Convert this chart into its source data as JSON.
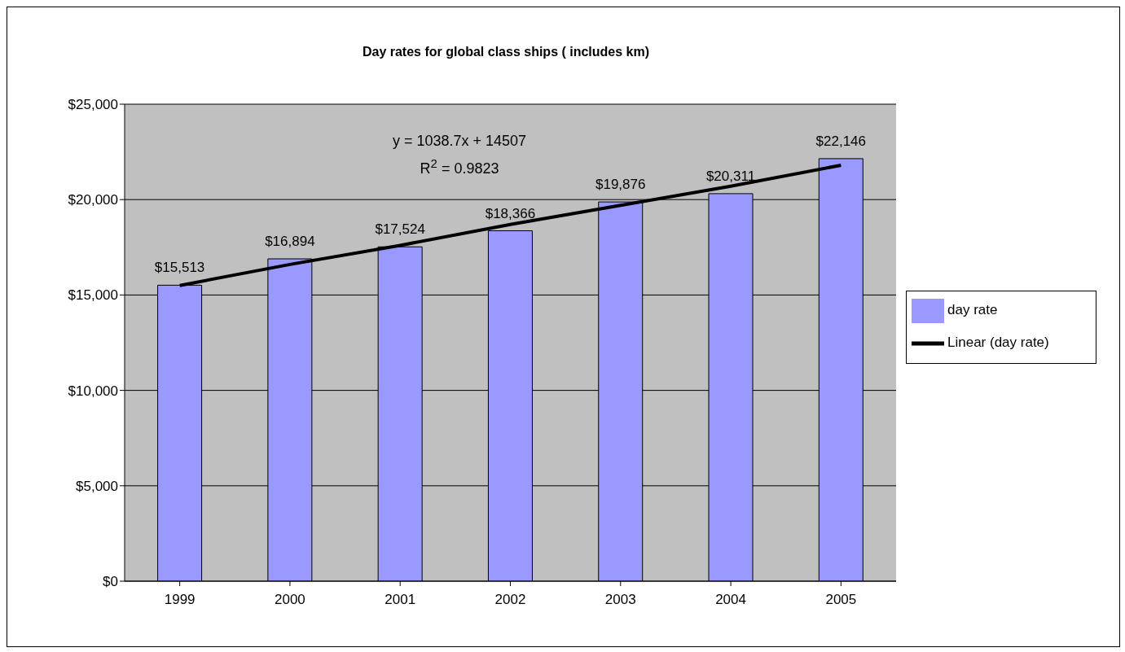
{
  "chart_data": {
    "type": "bar",
    "title": "Day rates for global class ships ( includes km)",
    "categories": [
      "1999",
      "2000",
      "2001",
      "2002",
      "2003",
      "2004",
      "2005"
    ],
    "series": [
      {
        "name": "day rate",
        "color": "#9999ff",
        "values": [
          15513,
          16894,
          17524,
          18366,
          19876,
          20311,
          22146
        ],
        "value_labels": [
          "$15,513",
          "$16,894",
          "$17,524",
          "$18,366",
          "$19,876",
          "$20,311",
          "$22,146"
        ]
      },
      {
        "name": "Linear (day rate)",
        "type": "line",
        "color": "#000000",
        "marker": "none",
        "values": [
          15500,
          16600,
          17600,
          18700,
          19700,
          20700,
          21800
        ]
      }
    ],
    "ylim": [
      0,
      25000
    ],
    "yticks": [
      {
        "value": 0,
        "label": "$0"
      },
      {
        "value": 5000,
        "label": "$5,000"
      },
      {
        "value": 10000,
        "label": "$10,000"
      },
      {
        "value": 15000,
        "label": "$15,000"
      },
      {
        "value": 20000,
        "label": "$20,000"
      },
      {
        "value": 25000,
        "label": "$25,000"
      }
    ],
    "grid": "y",
    "legend": "right",
    "annotations": [
      "y = 1038.7x + 14507",
      "R$^{2}$ = 0.9823"
    ]
  }
}
